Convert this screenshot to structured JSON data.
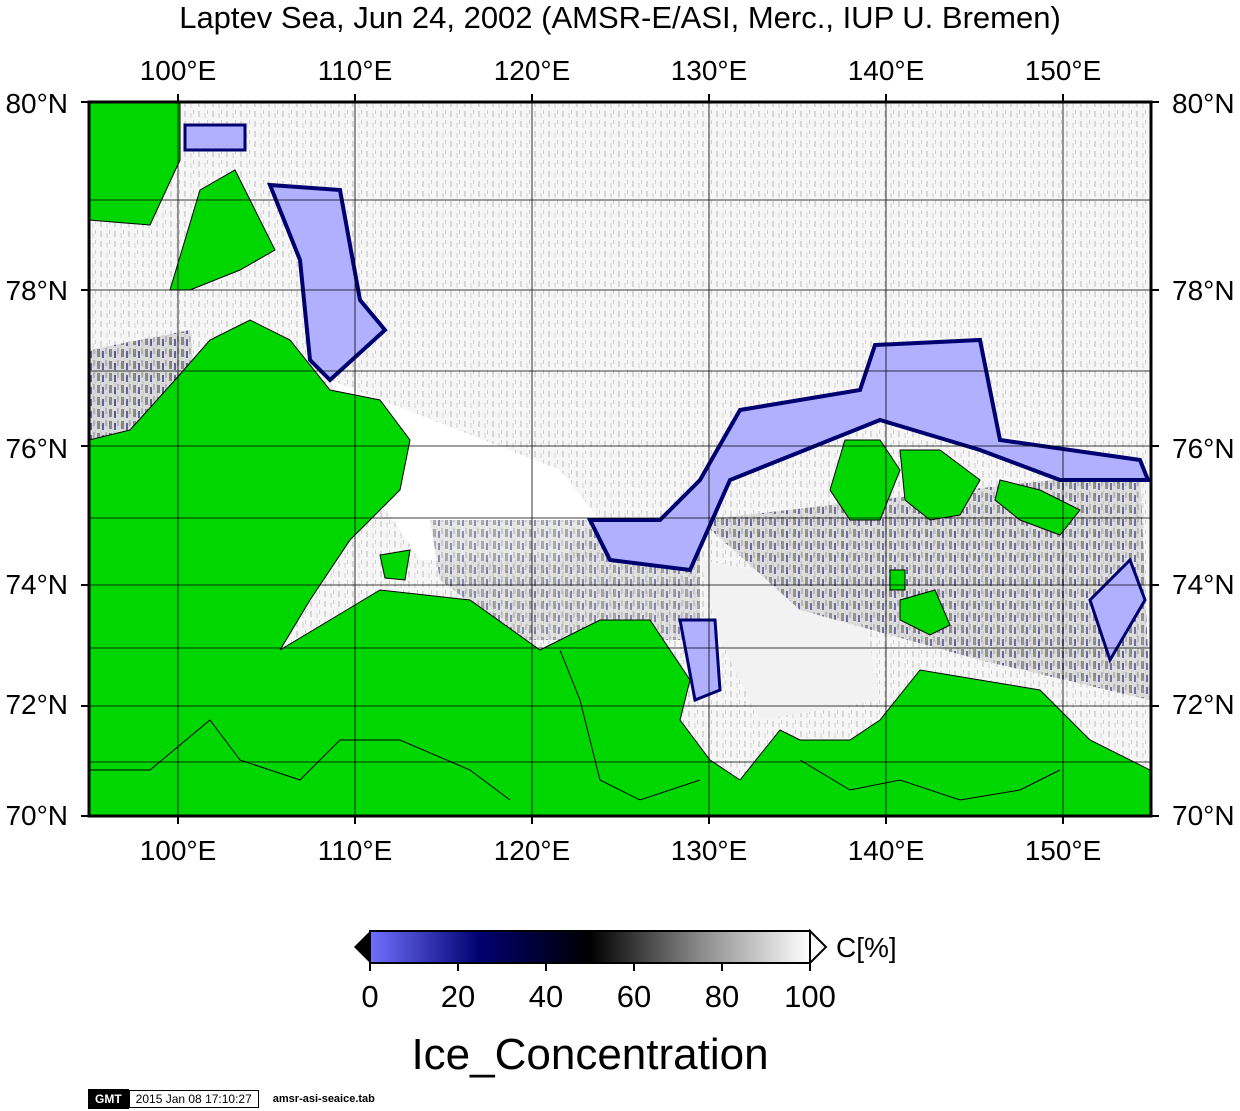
{
  "title": "Laptev Sea, Jun 24, 2002 (AMSR-E/ASI, Merc., IUP U. Bremen)",
  "map": {
    "lon_labels": [
      "100°E",
      "110°E",
      "120°E",
      "130°E",
      "140°E",
      "150°E"
    ],
    "lat_labels": [
      "80°N",
      "78°N",
      "76°N",
      "74°N",
      "72°N",
      "70°N"
    ],
    "lon_range": [
      95,
      155
    ],
    "lat_range": [
      70,
      80
    ],
    "projection": "Mercator",
    "colors": {
      "land": "#00d700",
      "low_ice": "#b0b0ff",
      "mid_ice": "#000070",
      "high_ice": "#ffffff"
    }
  },
  "colorbar": {
    "ticks": [
      "0",
      "20",
      "40",
      "60",
      "80",
      "100"
    ],
    "unit": "C[%]",
    "label": "Ice_Concentration"
  },
  "stamp": {
    "logo": "GMT",
    "date": "2015 Jan 08 17:10:27",
    "file": "amsr-asi-seaice.tab"
  }
}
